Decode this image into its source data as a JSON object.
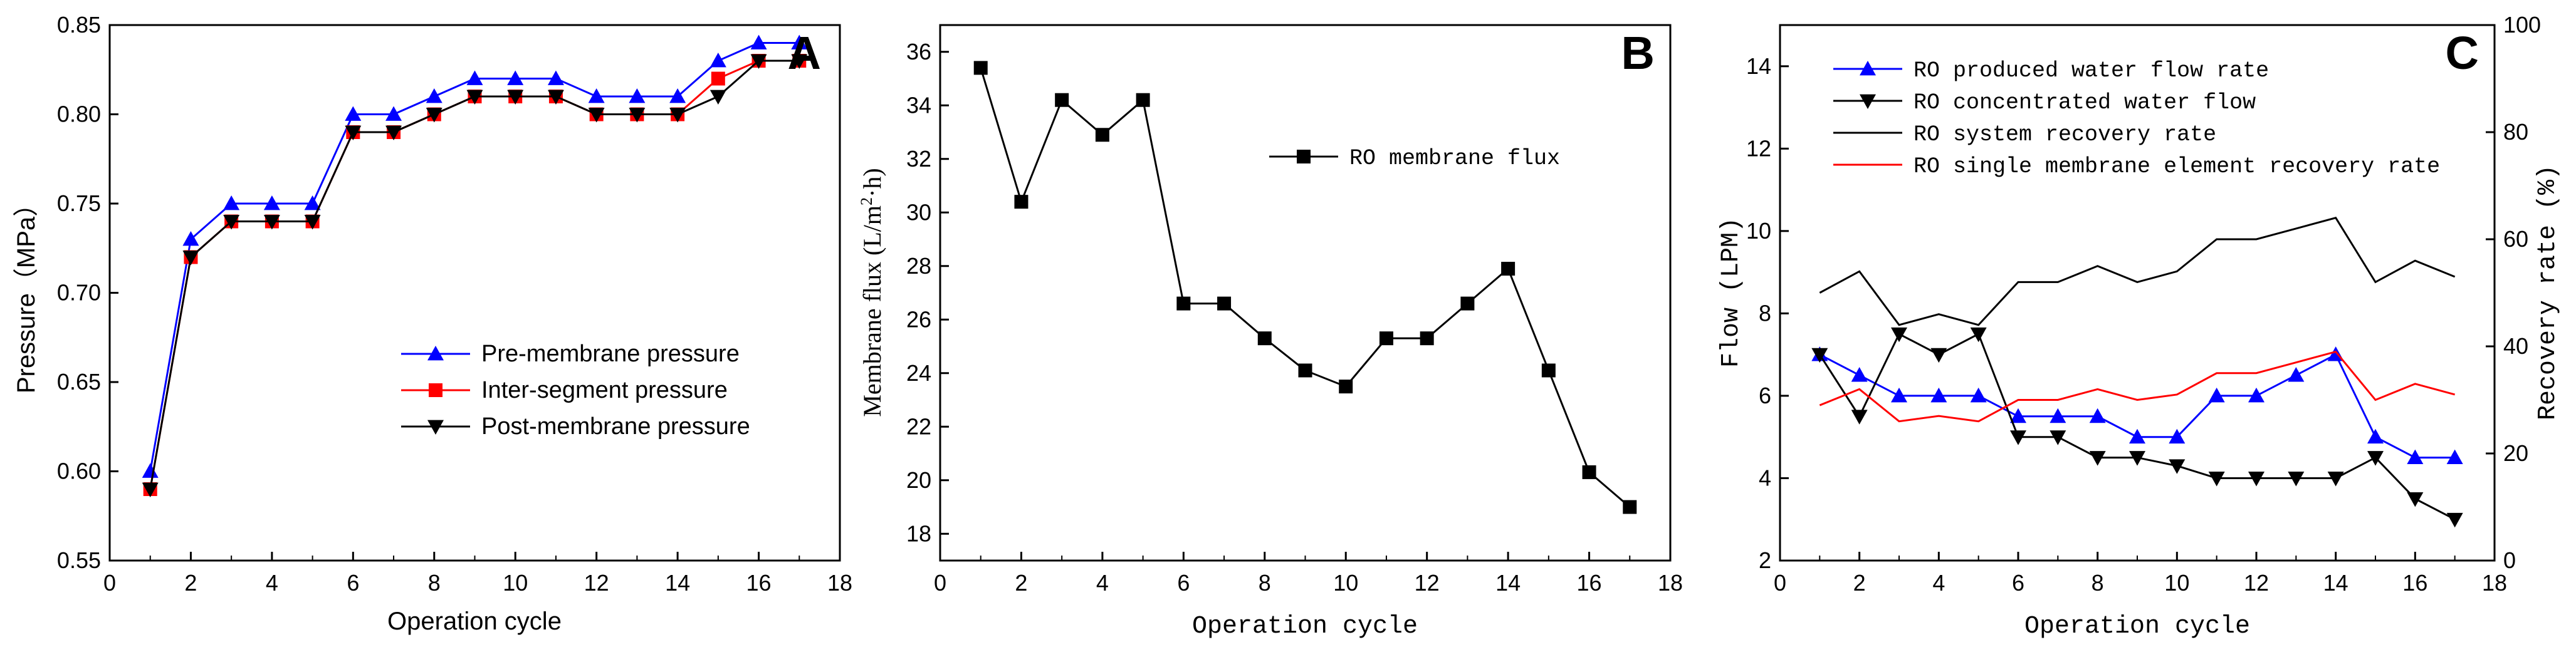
{
  "chart_data": [
    {
      "panel": "A",
      "type": "line",
      "xlabel": "Operation cycle",
      "ylabel": "Pressure（MPa）",
      "xlim": [
        0,
        18
      ],
      "ylim": [
        0.55,
        0.85
      ],
      "xticks": [
        0,
        2,
        4,
        6,
        8,
        10,
        12,
        14,
        16,
        18
      ],
      "yticks": [
        0.55,
        0.6,
        0.65,
        0.7,
        0.75,
        0.8,
        0.85
      ],
      "legend_position": "lower-right",
      "x": [
        1,
        2,
        3,
        4,
        5,
        6,
        7,
        8,
        9,
        10,
        11,
        12,
        13,
        14,
        15,
        16,
        17
      ],
      "series": [
        {
          "name": "Pre-membrane pressure",
          "color": "#0000ff",
          "marker": "triangle-up",
          "values": [
            0.6,
            0.73,
            0.75,
            0.75,
            0.75,
            0.8,
            0.8,
            0.81,
            0.82,
            0.82,
            0.82,
            0.81,
            0.81,
            0.81,
            0.83,
            0.84,
            0.84
          ]
        },
        {
          "name": "Inter-segment pressure",
          "color": "#ff0000",
          "marker": "square",
          "values": [
            0.59,
            0.72,
            0.74,
            0.74,
            0.74,
            0.79,
            0.79,
            0.8,
            0.81,
            0.81,
            0.81,
            0.8,
            0.8,
            0.8,
            0.82,
            0.83,
            0.83
          ]
        },
        {
          "name": "Post-membrane pressure",
          "color": "#000000",
          "marker": "triangle-down",
          "values": [
            0.59,
            0.72,
            0.74,
            0.74,
            0.74,
            0.79,
            0.79,
            0.8,
            0.81,
            0.81,
            0.81,
            0.8,
            0.8,
            0.8,
            0.81,
            0.83,
            0.83
          ]
        }
      ]
    },
    {
      "panel": "B",
      "type": "line",
      "xlabel": "Operation cycle",
      "ylabel_main": "Membrane flux (L/m",
      "ylabel_sup": "2",
      "ylabel_tail": "·h)",
      "xlim": [
        0,
        18
      ],
      "ylim": [
        17,
        37
      ],
      "xticks": [
        0,
        2,
        4,
        6,
        8,
        10,
        12,
        14,
        16,
        18
      ],
      "yticks": [
        18,
        20,
        22,
        24,
        26,
        28,
        30,
        32,
        34,
        36
      ],
      "legend_position": "top-right",
      "x": [
        1,
        2,
        3,
        4,
        5,
        6,
        7,
        8,
        9,
        10,
        11,
        12,
        13,
        14,
        15,
        16,
        17
      ],
      "series": [
        {
          "name": "RO membrane flux",
          "color": "#000000",
          "marker": "square",
          "values": [
            35.4,
            30.4,
            34.2,
            32.9,
            34.2,
            26.6,
            26.6,
            25.3,
            24.1,
            23.5,
            25.3,
            25.3,
            26.6,
            27.9,
            24.1,
            20.3,
            19.0
          ]
        }
      ]
    },
    {
      "panel": "C",
      "type": "line",
      "xlabel": "Operation cycle",
      "ylabel": "Flow (LPM)",
      "y2label": "Recovery rate (%)",
      "xlim": [
        0,
        18
      ],
      "ylim": [
        2,
        15
      ],
      "y2lim": [
        0,
        100
      ],
      "xticks": [
        0,
        2,
        4,
        6,
        8,
        10,
        12,
        14,
        16,
        18
      ],
      "yticks": [
        2,
        4,
        6,
        8,
        10,
        12,
        14
      ],
      "y2ticks": [
        0,
        20,
        40,
        60,
        80,
        100
      ],
      "legend_position": "top",
      "x": [
        1,
        2,
        3,
        4,
        5,
        6,
        7,
        8,
        9,
        10,
        11,
        12,
        13,
        14,
        15,
        16,
        17
      ],
      "series": [
        {
          "name": "RO produced water flow rate",
          "color": "#0000ff",
          "marker": "triangle-up",
          "axis": "left",
          "values": [
            7.0,
            6.5,
            6.0,
            6.0,
            6.0,
            5.5,
            5.5,
            5.5,
            5.0,
            5.0,
            6.0,
            6.0,
            6.5,
            7.0,
            5.0,
            4.5,
            4.5
          ]
        },
        {
          "name": "RO concentrated water flow",
          "color": "#000000",
          "marker": "triangle-down",
          "axis": "left",
          "values": [
            7.0,
            5.5,
            7.5,
            7.0,
            7.5,
            5.0,
            5.0,
            4.5,
            4.5,
            4.3,
            4.0,
            4.0,
            4.0,
            4.0,
            4.5,
            3.5,
            3.0
          ]
        },
        {
          "name": "RO system recovery rate",
          "color": "#000000",
          "marker": "none",
          "axis": "right",
          "values": [
            50,
            54,
            44,
            46,
            44,
            52,
            52,
            55,
            52,
            54,
            60,
            60,
            62,
            64,
            52,
            56,
            53
          ]
        },
        {
          "name": "RO single membrane element recovery rate",
          "color": "#ff0000",
          "marker": "none",
          "axis": "right",
          "values": [
            29,
            32,
            26,
            27,
            26,
            30,
            30,
            32,
            30,
            31,
            35,
            35,
            37,
            39,
            30,
            33,
            31
          ]
        }
      ]
    }
  ]
}
